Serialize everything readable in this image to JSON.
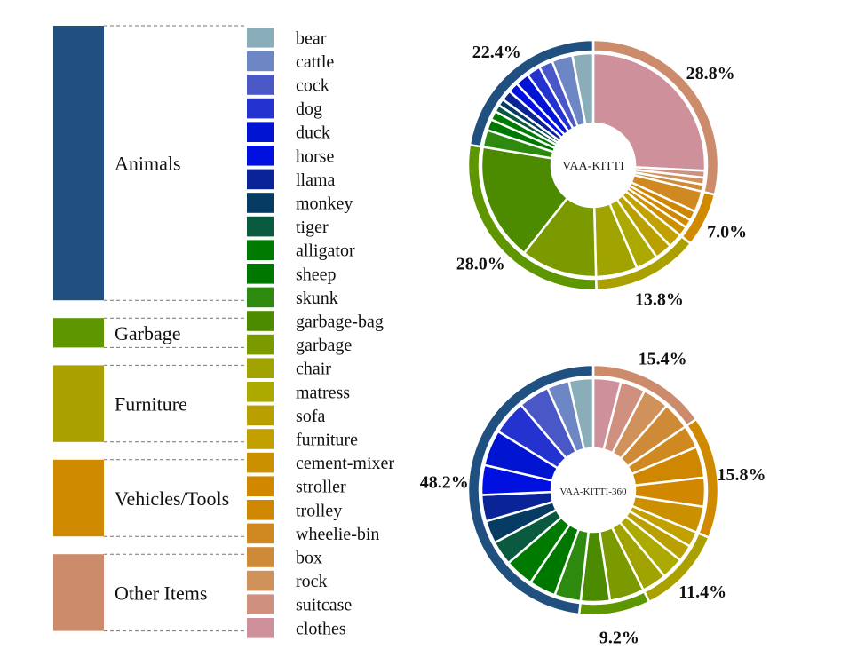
{
  "chart_data": {
    "type": "pie",
    "categories": [
      {
        "name": "Animals",
        "color": "#1f5080",
        "subs": [
          "bear",
          "cattle",
          "cock",
          "dog",
          "duck",
          "horse",
          "llama",
          "monkey",
          "tiger",
          "alligator",
          "sheep",
          "skunk"
        ]
      },
      {
        "name": "Garbage",
        "color": "#5e9600",
        "subs": [
          "garbage-bag",
          "garbage"
        ]
      },
      {
        "name": "Furniture",
        "color": "#aaa100",
        "subs": [
          "chair",
          "matress",
          "sofa",
          "furniture"
        ]
      },
      {
        "name": "Vehicles/Tools",
        "color": "#cf8a00",
        "subs": [
          "cement-mixer",
          "stroller",
          "trolley",
          "wheelie-bin"
        ]
      },
      {
        "name": "Other Items",
        "color": "#cc8c6b",
        "subs": [
          "box",
          "rock",
          "suitcase",
          "clothes"
        ]
      }
    ],
    "subcategory_colors": {
      "bear": "#8aaeb9",
      "cattle": "#6d86c4",
      "cock": "#4a57c6",
      "dog": "#2433cf",
      "duck": "#0014d2",
      "horse": "#0010e0",
      "llama": "#0a2396",
      "monkey": "#063b64",
      "tiger": "#0a5a3f",
      "alligator": "#007a00",
      "sheep": "#007800",
      "skunk": "#2e8a0f",
      "garbage-bag": "#4c8b00",
      "garbage": "#7a9a00",
      "chair": "#a0a300",
      "matress": "#aca900",
      "sofa": "#b9a000",
      "furniture": "#c1a000",
      "cement-mixer": "#ca9000",
      "stroller": "#d18800",
      "trolley": "#cf8600",
      "wheelie-bin": "#cf8920",
      "box": "#ce8a36",
      "rock": "#d1915a",
      "suitcase": "#d09080",
      "clothes": "#ce909a"
    },
    "charts": [
      {
        "title": "VAA-KITTI",
        "outer_values": [
          22.4,
          28.0,
          13.8,
          7.0,
          28.8
        ],
        "outer_labels": [
          "22.4%",
          "28.0%",
          "13.8%",
          "7.0%",
          "28.8%"
        ],
        "inner_values": [
          3.0,
          3.0,
          2.0,
          2.0,
          2.0,
          1.5,
          1.5,
          1.0,
          1.0,
          1.3,
          1.6,
          2.5,
          17.0,
          11.0,
          6.0,
          3.2,
          2.5,
          2.1,
          1.4,
          1.2,
          1.4,
          3.0,
          1.0,
          1.0,
          1.0,
          25.8
        ]
      },
      {
        "title": "VAA-KITTI-360",
        "outer_values": [
          48.2,
          9.2,
          11.4,
          15.8,
          15.4
        ],
        "outer_labels": [
          "48.2%",
          "9.2%",
          "11.4%",
          "15.8%",
          "15.4%"
        ],
        "inner_values": [
          3.5,
          3.2,
          4.5,
          5.0,
          5.2,
          4.3,
          3.8,
          3.3,
          3.5,
          4.2,
          3.9,
          3.8,
          4.2,
          5.0,
          3.6,
          3.2,
          2.4,
          2.2,
          3.8,
          4.2,
          4.5,
          3.3,
          4.0,
          3.8,
          3.6,
          4.0
        ]
      }
    ]
  }
}
